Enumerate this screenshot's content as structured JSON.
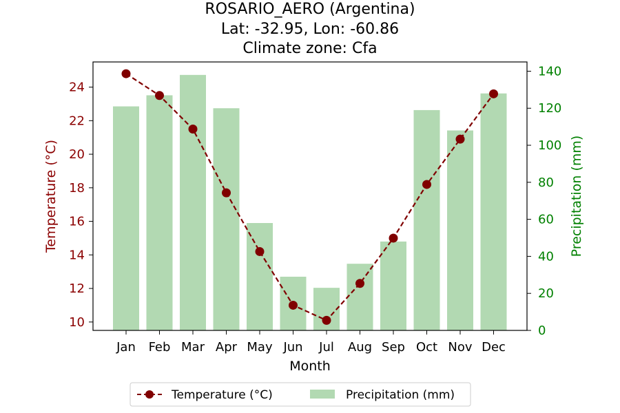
{
  "chart_data": {
    "type": "bar+line",
    "title_lines": [
      "ROSARIO_AERO (Argentina)",
      "Lat: -32.95, Lon: -60.86",
      "Climate zone: Cfa"
    ],
    "xlabel": "Month",
    "categories": [
      "Jan",
      "Feb",
      "Mar",
      "Apr",
      "May",
      "Jun",
      "Jul",
      "Aug",
      "Sep",
      "Oct",
      "Nov",
      "Dec"
    ],
    "temperature": {
      "name": "Temperature (°C)",
      "axis_label": "Temperature (°C)",
      "values": [
        24.8,
        23.5,
        21.5,
        17.7,
        14.2,
        11.0,
        10.1,
        12.3,
        15.0,
        18.2,
        20.9,
        23.6
      ],
      "ylim": [
        9.5,
        25.5
      ],
      "ticks": [
        10,
        12,
        14,
        16,
        18,
        20,
        22,
        24
      ],
      "color": "#800000",
      "line_style": "dashed",
      "marker": "circle"
    },
    "precipitation": {
      "name": "Precipitation (mm)",
      "axis_label": "Precipitation (mm)",
      "values": [
        121,
        127,
        138,
        120,
        58,
        29,
        23,
        36,
        48,
        119,
        108,
        128
      ],
      "ylim": [
        0,
        145
      ],
      "ticks": [
        0,
        20,
        40,
        60,
        80,
        100,
        120,
        140
      ],
      "color": "#b2d9b2",
      "axis_color": "#008000"
    },
    "grid": false,
    "legend": {
      "placement": "bottom-center"
    }
  }
}
